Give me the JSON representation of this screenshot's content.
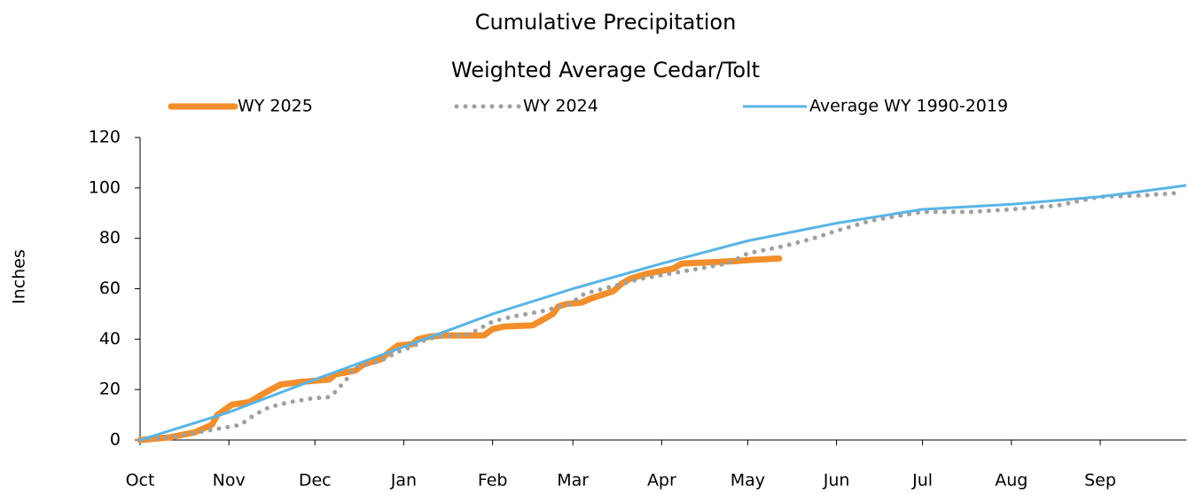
{
  "chart_data": {
    "type": "line",
    "title": "Cumulative Precipitation",
    "subtitle": "Weighted Average Cedar/Tolt",
    "y_label": "Inches",
    "xlim": [
      0,
      365
    ],
    "xticks": [
      {
        "value": 0,
        "label": "Oct"
      },
      {
        "value": 31,
        "label": "Nov"
      },
      {
        "value": 61,
        "label": "Dec"
      },
      {
        "value": 92,
        "label": "Jan"
      },
      {
        "value": 123,
        "label": "Feb"
      },
      {
        "value": 151,
        "label": "Mar"
      },
      {
        "value": 182,
        "label": "Apr"
      },
      {
        "value": 212,
        "label": "May"
      },
      {
        "value": 243,
        "label": "Jun"
      },
      {
        "value": 273,
        "label": "Jul"
      },
      {
        "value": 304,
        "label": "Aug"
      },
      {
        "value": 335,
        "label": "Sep"
      }
    ],
    "ylim": [
      0,
      120
    ],
    "yticks": [
      0,
      20,
      40,
      60,
      80,
      100,
      120
    ],
    "legend": "top",
    "series": [
      {
        "name": "WY 2025",
        "color": "#f28e2b",
        "style": "thick",
        "x": [
          0,
          10,
          19,
          25,
          27,
          32,
          38,
          44,
          49,
          56,
          66,
          68,
          75,
          78,
          84,
          87,
          90,
          95,
          97,
          101,
          106,
          120,
          123,
          127,
          137,
          141,
          144,
          146,
          149,
          154,
          157,
          165,
          168,
          171,
          177,
          186,
          189,
          199,
          208,
          214,
          223
        ],
        "values": [
          0,
          1,
          3,
          6,
          10,
          14,
          15,
          19,
          22,
          23,
          24,
          26,
          27.5,
          30,
          32,
          35,
          37.5,
          38,
          40,
          41,
          41.5,
          41.5,
          44,
          45,
          45.5,
          48,
          50,
          53,
          54,
          54.5,
          56,
          59,
          62,
          64,
          66,
          68,
          70,
          70.5,
          71,
          71.5,
          72
        ]
      },
      {
        "name": "WY 2024",
        "color": "#a0a0a0",
        "style": "dotted",
        "x": [
          0,
          10,
          20,
          30,
          35,
          40,
          45,
          52,
          60,
          66,
          68,
          72,
          75,
          80,
          85,
          90,
          95,
          100,
          105,
          115,
          123,
          130,
          140,
          150,
          155,
          165,
          175,
          185,
          195,
          205,
          212,
          225,
          235,
          243,
          255,
          265,
          273,
          290,
          304,
          320,
          335,
          350,
          362
        ],
        "values": [
          0,
          1,
          3,
          5,
          6,
          10,
          13,
          15,
          16.5,
          17,
          19,
          24,
          29,
          30,
          32,
          35,
          37,
          40,
          41,
          42,
          47,
          49,
          51,
          54,
          58,
          61,
          64,
          66,
          68,
          70,
          74,
          77,
          80,
          83,
          87,
          89,
          90.5,
          90.5,
          91.5,
          93,
          96.5,
          97,
          98
        ]
      },
      {
        "name": "Average WY 1990-2019",
        "color": "#5ab4e5",
        "style": "solid",
        "x": [
          0,
          31,
          61,
          92,
          123,
          151,
          182,
          212,
          243,
          273,
          304,
          335,
          365
        ],
        "values": [
          0,
          11,
          24,
          37,
          50,
          60,
          70,
          79,
          86,
          91.5,
          93.5,
          96.5,
          101
        ]
      }
    ]
  }
}
